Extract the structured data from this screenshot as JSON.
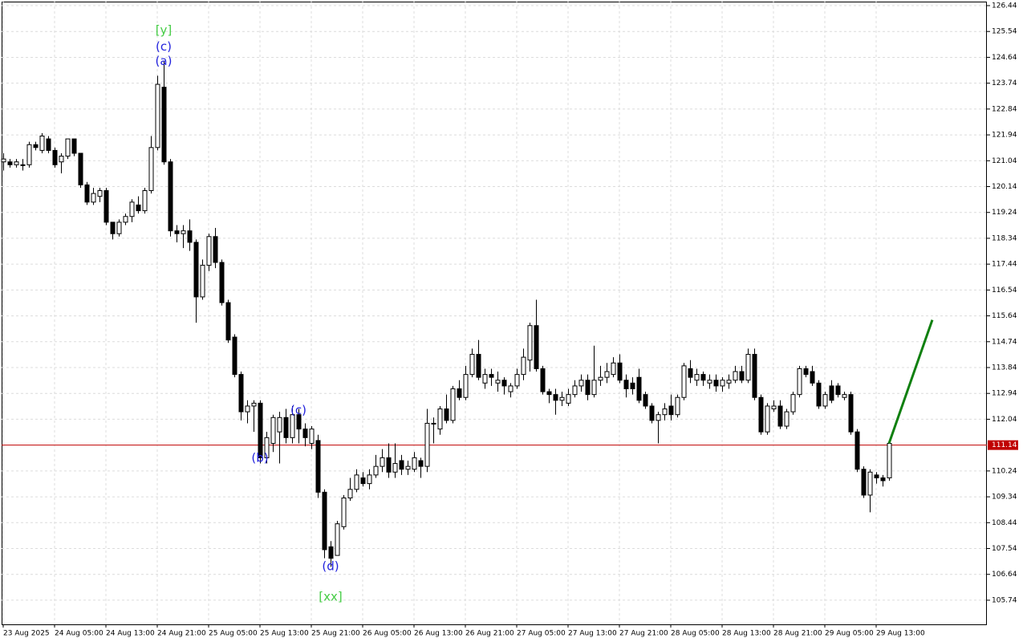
{
  "chart_data": {
    "type": "candlestick",
    "xlim": [
      -0.25,
      153.25
    ],
    "ylim": [
      104.9,
      126.58
    ],
    "yticks": [
      105.74,
      106.64,
      107.54,
      108.44,
      109.34,
      110.24,
      112.04,
      112.94,
      113.84,
      114.74,
      115.64,
      116.54,
      117.44,
      118.34,
      119.24,
      120.14,
      121.04,
      121.94,
      122.84,
      123.74,
      124.64,
      125.54,
      126.44
    ],
    "xticks": [
      {
        "value": 0,
        "label": "23 Aug 2025"
      },
      {
        "value": 8,
        "label": "24 Aug 05:00"
      },
      {
        "value": 16,
        "label": "24 Aug 13:00"
      },
      {
        "value": 24,
        "label": "24 Aug 21:00"
      },
      {
        "value": 32,
        "label": "25 Aug 05:00"
      },
      {
        "value": 40,
        "label": "25 Aug 13:00"
      },
      {
        "value": 48,
        "label": "25 Aug 21:00"
      },
      {
        "value": 56,
        "label": "26 Aug 05:00"
      },
      {
        "value": 64,
        "label": "26 Aug 13:00"
      },
      {
        "value": 72,
        "label": "26 Aug 21:00"
      },
      {
        "value": 80,
        "label": "27 Aug 05:00"
      },
      {
        "value": 88,
        "label": "27 Aug 13:00"
      },
      {
        "value": 96,
        "label": "27 Aug 21:00"
      },
      {
        "value": 104,
        "label": "28 Aug 05:00"
      },
      {
        "value": 112,
        "label": "28 Aug 13:00"
      },
      {
        "value": 120,
        "label": "28 Aug 21:00"
      },
      {
        "value": 128,
        "label": "29 Aug 05:00"
      },
      {
        "value": 136,
        "label": "29 Aug 13:00"
      }
    ],
    "grid": true,
    "up_color": "#ffffff",
    "down_color": "#000000",
    "open": [
      121.0,
      121.0,
      120.9,
      120.9,
      120.9,
      121.6,
      121.4,
      121.8,
      121.4,
      121.0,
      121.2,
      121.8,
      121.3,
      120.2,
      119.6,
      119.8,
      120.0,
      118.9,
      118.5,
      118.9,
      119.1,
      119.5,
      119.3,
      120.0,
      121.5,
      123.6,
      121.0,
      118.6,
      118.5,
      118.6,
      118.2,
      116.3,
      117.4,
      118.4,
      117.5,
      116.1,
      114.9,
      113.6,
      112.3,
      112.5,
      112.6,
      110.7,
      111.2,
      111.6,
      112.1,
      111.4,
      112.2,
      111.7,
      111.2,
      111.3,
      109.5,
      107.6,
      107.3,
      108.3,
      109.3,
      109.6,
      110.0,
      109.8,
      110.1,
      110.4,
      110.7,
      110.2,
      110.6,
      110.3,
      110.3,
      110.6,
      110.4,
      111.9,
      111.7,
      112.4,
      112.0,
      113.1,
      112.8,
      113.6,
      114.3,
      113.3,
      113.6,
      113.3,
      113.4,
      113.0,
      113.2,
      113.6,
      114.1,
      115.3,
      113.8,
      113.0,
      112.9,
      112.7,
      112.6,
      112.9,
      113.2,
      113.4,
      112.9,
      113.4,
      113.5,
      113.6,
      114.0,
      113.4,
      113.3,
      113.5,
      112.9,
      112.5,
      112.0,
      112.2,
      112.5,
      112.2,
      112.8,
      113.8,
      113.4,
      113.6,
      113.3,
      113.4,
      113.2,
      113.3,
      113.4,
      113.7,
      113.4,
      114.3,
      112.8,
      111.6,
      112.4,
      112.5,
      111.8,
      112.3,
      112.9,
      113.8,
      113.7,
      113.3,
      112.5,
      113.2,
      113.2,
      112.8,
      112.9,
      111.6,
      110.3,
      109.4,
      110.1,
      110.0,
      110.0
    ],
    "high": [
      121.3,
      121.1,
      121.1,
      121.1,
      121.7,
      121.7,
      122.0,
      121.9,
      121.5,
      121.3,
      121.8,
      121.8,
      121.3,
      120.3,
      120.1,
      120.1,
      120.1,
      118.9,
      119.0,
      119.2,
      119.7,
      119.8,
      120.1,
      121.9,
      124.0,
      124.5,
      121.1,
      118.8,
      118.8,
      119.0,
      118.3,
      117.6,
      118.5,
      118.7,
      117.6,
      116.2,
      115.0,
      113.7,
      112.7,
      112.7,
      112.7,
      111.6,
      112.2,
      112.3,
      112.4,
      112.5,
      112.4,
      111.9,
      111.8,
      111.5,
      109.6,
      107.8,
      108.5,
      109.4,
      110.0,
      110.3,
      110.2,
      110.3,
      110.8,
      111.0,
      111.2,
      111.2,
      110.8,
      110.6,
      110.9,
      110.7,
      112.4,
      112.1,
      112.5,
      112.9,
      113.2,
      113.4,
      113.9,
      114.5,
      114.8,
      113.8,
      113.8,
      113.7,
      113.5,
      113.3,
      113.8,
      114.5,
      115.4,
      116.2,
      113.9,
      113.1,
      113.1,
      113.0,
      113.1,
      113.4,
      113.6,
      113.6,
      114.6,
      113.9,
      114.0,
      114.2,
      114.3,
      113.6,
      113.5,
      113.8,
      113.0,
      112.6,
      112.3,
      112.6,
      112.9,
      112.9,
      114.0,
      114.1,
      113.8,
      113.7,
      113.6,
      113.6,
      113.5,
      113.6,
      113.9,
      113.9,
      114.5,
      114.5,
      112.9,
      112.6,
      112.7,
      112.7,
      112.4,
      113.0,
      113.9,
      113.9,
      113.9,
      113.4,
      113.0,
      113.4,
      113.3,
      113.0,
      113.0,
      111.7,
      110.4,
      110.3,
      110.2,
      110.1,
      111.3
    ],
    "low": [
      120.7,
      120.8,
      120.8,
      120.7,
      120.8,
      121.4,
      121.3,
      121.3,
      120.8,
      120.6,
      121.1,
      121.2,
      120.1,
      119.5,
      119.5,
      119.6,
      118.8,
      118.3,
      118.4,
      118.8,
      118.9,
      119.2,
      119.2,
      119.9,
      121.4,
      120.9,
      118.4,
      118.2,
      118.0,
      117.9,
      115.4,
      116.2,
      117.2,
      117.3,
      116.0,
      114.7,
      113.5,
      112.0,
      111.9,
      111.6,
      110.5,
      110.5,
      110.9,
      110.5,
      111.2,
      111.2,
      111.2,
      111.1,
      111.0,
      109.3,
      107.2,
      106.9,
      107.3,
      108.2,
      109.2,
      109.5,
      109.7,
      109.6,
      110.0,
      110.2,
      110.0,
      110.0,
      110.1,
      110.1,
      110.2,
      110.0,
      110.2,
      111.2,
      111.5,
      111.9,
      111.9,
      112.7,
      112.7,
      113.5,
      113.4,
      113.1,
      113.2,
      113.0,
      112.9,
      112.8,
      113.1,
      113.4,
      113.7,
      113.7,
      112.9,
      112.6,
      112.2,
      112.5,
      112.5,
      112.8,
      113.0,
      112.7,
      112.8,
      113.2,
      113.3,
      113.5,
      113.3,
      112.8,
      112.9,
      112.6,
      112.4,
      111.9,
      111.2,
      112.0,
      112.0,
      112.1,
      112.7,
      113.3,
      113.2,
      113.2,
      113.1,
      113.0,
      113.0,
      113.1,
      113.3,
      113.3,
      113.3,
      112.7,
      111.5,
      111.5,
      112.3,
      111.7,
      111.7,
      112.2,
      112.8,
      113.5,
      113.2,
      112.4,
      112.4,
      112.6,
      112.8,
      112.7,
      111.5,
      110.2,
      109.3,
      108.8,
      109.8,
      109.7,
      109.9
    ],
    "close": [
      121.1,
      120.9,
      121.0,
      120.9,
      121.6,
      121.5,
      121.9,
      121.4,
      120.9,
      121.2,
      121.8,
      121.3,
      120.2,
      119.6,
      119.9,
      120.0,
      118.9,
      118.5,
      118.9,
      119.1,
      119.6,
      119.3,
      120.0,
      121.5,
      123.7,
      121.0,
      118.6,
      118.5,
      118.6,
      118.2,
      116.3,
      117.4,
      118.4,
      117.5,
      116.1,
      114.8,
      113.6,
      112.3,
      112.5,
      112.6,
      110.7,
      111.4,
      112.1,
      112.1,
      111.4,
      112.2,
      111.7,
      111.4,
      111.7,
      109.5,
      107.5,
      107.2,
      108.4,
      109.3,
      109.6,
      110.1,
      109.8,
      110.1,
      110.4,
      110.7,
      110.2,
      110.5,
      110.3,
      110.4,
      110.7,
      110.4,
      111.9,
      111.9,
      112.4,
      112.0,
      113.1,
      112.8,
      113.6,
      114.3,
      113.5,
      113.6,
      113.5,
      113.4,
      113.2,
      113.2,
      113.6,
      114.2,
      115.3,
      113.8,
      113.0,
      112.9,
      112.7,
      112.8,
      112.9,
      113.2,
      113.4,
      112.9,
      113.4,
      113.5,
      113.7,
      114.0,
      113.4,
      113.1,
      113.1,
      112.7,
      112.5,
      112.0,
      112.2,
      112.4,
      112.2,
      112.8,
      113.9,
      113.5,
      113.6,
      113.4,
      113.4,
      113.2,
      113.4,
      113.4,
      113.7,
      113.4,
      114.3,
      112.8,
      111.6,
      112.5,
      112.5,
      111.8,
      112.3,
      112.9,
      113.8,
      113.6,
      113.3,
      112.5,
      112.9,
      112.7,
      112.9,
      112.9,
      111.6,
      110.3,
      109.4,
      110.2,
      110.0,
      109.9,
      111.2
    ],
    "current_price": {
      "value": 111.14,
      "label": "111.14",
      "color": "#c00000"
    },
    "annotations": [
      {
        "text": "[y]",
        "bar": 25,
        "price": 125.57,
        "color": "#44cc44"
      },
      {
        "text": "(c)",
        "bar": 25,
        "price": 125.0,
        "color": "#2222dd"
      },
      {
        "text": "(a)",
        "bar": 25,
        "price": 124.5,
        "color": "#2222dd"
      },
      {
        "text": "(b)",
        "bar": 40,
        "price": 110.69,
        "color": "#2222dd"
      },
      {
        "text": "(c)",
        "bar": 46,
        "price": 112.34,
        "color": "#2222dd"
      },
      {
        "text": "(d)",
        "bar": 51,
        "price": 106.91,
        "color": "#2222dd"
      },
      {
        "text": "[xx]",
        "bar": 51,
        "price": 105.85,
        "color": "#44cc44"
      }
    ],
    "forecast": {
      "x": [
        138,
        144.75
      ],
      "y": [
        111.2,
        115.5
      ],
      "color": "#108010"
    }
  }
}
